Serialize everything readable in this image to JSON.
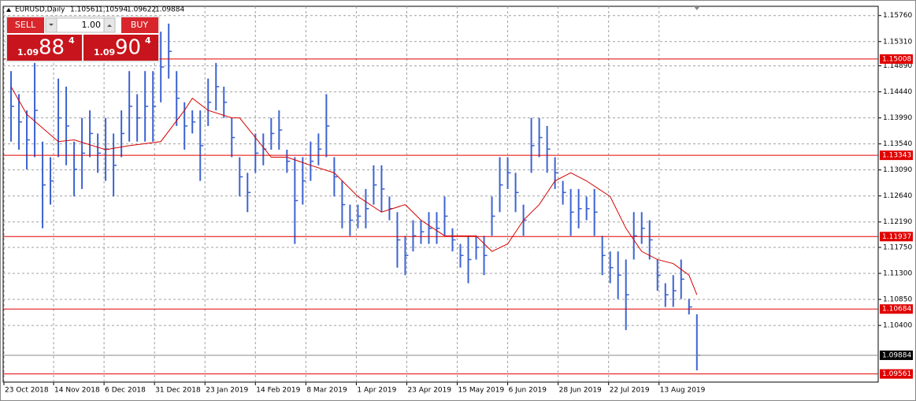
{
  "chart_data": {
    "type": "ohlc",
    "title": "EURUSD,Daily",
    "last_open": 1.10561,
    "color": "#3d63d1",
    "high": [
      1.148,
      1.144,
      1.1412,
      1.1494,
      1.1358,
      1.1331,
      1.1467,
      1.1453,
      1.1358,
      1.1399,
      1.1412,
      1.1372,
      1.1399,
      1.1372,
      1.1412,
      1.148,
      1.144,
      1.148,
      1.148,
      1.1548,
      1.1562,
      1.148,
      1.1426,
      1.1412,
      1.1412,
      1.1467,
      1.1494,
      1.1453,
      1.1399,
      1.1331,
      1.1304,
      1.1372,
      1.1372,
      1.1399,
      1.1412,
      1.1344,
      1.1331,
      1.1331,
      1.1358,
      1.1372,
      1.144,
      1.1331,
      1.129,
      1.1249,
      1.1249,
      1.1276,
      1.1317,
      1.1317,
      1.1263,
      1.1236,
      1.1195,
      1.1222,
      1.1222,
      1.1236,
      1.1236,
      1.1263,
      1.1208,
      1.1181,
      1.1195,
      1.1195,
      1.1195,
      1.1263,
      1.1331,
      1.1331,
      1.1304,
      1.1249,
      1.1399,
      1.1399,
      1.1385,
      1.1331,
      1.129,
      1.1276,
      1.1276,
      1.1263,
      1.1276,
      1.1195,
      1.1168,
      1.1168,
      1.1154,
      1.1236,
      1.1236,
      1.1222,
      1.1154,
      1.1113,
      1.1127,
      1.1154,
      1.1086,
      1.10594
    ],
    "low": [
      1.1358,
      1.1344,
      1.131,
      1.1331,
      1.1208,
      1.1249,
      1.1331,
      1.1317,
      1.1263,
      1.1276,
      1.1331,
      1.1304,
      1.129,
      1.1263,
      1.1331,
      1.1358,
      1.1358,
      1.1358,
      1.1358,
      1.1426,
      1.1467,
      1.1385,
      1.1344,
      1.1372,
      1.129,
      1.1385,
      1.1412,
      1.1399,
      1.1331,
      1.1263,
      1.1236,
      1.1304,
      1.1317,
      1.1344,
      1.1344,
      1.1304,
      1.1181,
      1.1249,
      1.129,
      1.1317,
      1.1331,
      1.1263,
      1.1208,
      1.1195,
      1.1208,
      1.1208,
      1.1249,
      1.1236,
      1.1222,
      1.114,
      1.1127,
      1.1168,
      1.1181,
      1.1181,
      1.1181,
      1.1195,
      1.1168,
      1.114,
      1.1113,
      1.1154,
      1.1127,
      1.1195,
      1.1236,
      1.1276,
      1.1236,
      1.1195,
      1.1304,
      1.1331,
      1.1304,
      1.1276,
      1.1249,
      1.1195,
      1.1208,
      1.1222,
      1.1195,
      1.1127,
      1.1113,
      1.1086,
      1.1032,
      1.1154,
      1.1181,
      1.1154,
      1.11,
      1.1072,
      1.1072,
      1.1086,
      1.1059,
      1.09622
    ],
    "close": [
      1.1419,
      1.1392,
      1.1361,
      1.1412,
      1.1283,
      1.129,
      1.1399,
      1.1385,
      1.131,
      1.1338,
      1.1372,
      1.1338,
      1.1345,
      1.1317,
      1.1372,
      1.1419,
      1.1399,
      1.1419,
      1.1419,
      1.1487,
      1.1514,
      1.1433,
      1.1385,
      1.1392,
      1.1351,
      1.1426,
      1.1453,
      1.1426,
      1.1365,
      1.1297,
      1.127,
      1.1338,
      1.1345,
      1.1372,
      1.1378,
      1.1324,
      1.1256,
      1.129,
      1.1324,
      1.1345,
      1.1385,
      1.1297,
      1.1249,
      1.1222,
      1.1229,
      1.1242,
      1.1283,
      1.1276,
      1.1242,
      1.1188,
      1.1161,
      1.1195,
      1.1202,
      1.1208,
      1.1208,
      1.1229,
      1.1188,
      1.1161,
      1.1154,
      1.1175,
      1.1161,
      1.1229,
      1.1283,
      1.1304,
      1.127,
      1.1222,
      1.1351,
      1.1365,
      1.1345,
      1.1304,
      1.127,
      1.1236,
      1.1242,
      1.1242,
      1.1236,
      1.1161,
      1.114,
      1.1127,
      1.1093,
      1.1195,
      1.1208,
      1.1188,
      1.1127,
      1.1093,
      1.11,
      1.112,
      1.1072,
      1.09884
    ],
    "ma": {
      "color": "#d40000",
      "x": [
        0,
        2,
        6,
        8,
        12,
        15,
        19,
        22,
        23,
        25,
        28,
        29,
        33,
        35,
        38,
        41,
        44,
        47,
        50,
        52,
        55,
        59,
        61,
        63,
        65,
        67,
        69,
        71,
        73,
        76,
        78,
        80,
        82,
        84,
        86,
        87
      ],
      "values": [
        1.1453,
        1.1405,
        1.1358,
        1.1361,
        1.1344,
        1.1351,
        1.1358,
        1.1412,
        1.1433,
        1.1412,
        1.1399,
        1.1399,
        1.1331,
        1.1331,
        1.1317,
        1.1304,
        1.1263,
        1.1236,
        1.1249,
        1.1222,
        1.1195,
        1.1195,
        1.1168,
        1.1181,
        1.1222,
        1.1249,
        1.129,
        1.1304,
        1.129,
        1.1263,
        1.1208,
        1.1168,
        1.1154,
        1.1147,
        1.1127,
        1.1093
      ]
    },
    "levels": {
      "color": "#e00000",
      "values": [
        1.15008,
        1.13343,
        1.11937,
        1.10684,
        1.09561
      ]
    },
    "current_price": 1.09884,
    "xlim": [
      -1,
      110
    ],
    "ylim": [
      1.0942,
      1.1592
    ],
    "xticks": [
      {
        "value": -0.9,
        "label": "23 Oct 2018"
      },
      {
        "value": 5.4,
        "label": "14 Nov 2018"
      },
      {
        "value": 11.8,
        "label": "6 Dec 2018"
      },
      {
        "value": 18.2,
        "label": "31 Dec 2018"
      },
      {
        "value": 24.6,
        "label": "23 Jan 2019"
      },
      {
        "value": 31,
        "label": "14 Feb 2019"
      },
      {
        "value": 37.4,
        "label": "8 Mar 2019"
      },
      {
        "value": 43.8,
        "label": "1 Apr 2019"
      },
      {
        "value": 50.2,
        "label": "23 Apr 2019"
      },
      {
        "value": 56.6,
        "label": "15 May 2019"
      },
      {
        "value": 63,
        "label": "6 Jun 2019"
      },
      {
        "value": 69.4,
        "label": "28 Jun 2019"
      },
      {
        "value": 75.8,
        "label": "22 Jul 2019"
      },
      {
        "value": 82.2,
        "label": "13 Aug 2019"
      }
    ],
    "yticks": [
      {
        "value": 1.1576,
        "label": "1.15760"
      },
      {
        "value": 1.1531,
        "label": "1.15310"
      },
      {
        "value": 1.1489,
        "label": "1.14890"
      },
      {
        "value": 1.1444,
        "label": "1.14440"
      },
      {
        "value": 1.1399,
        "label": "1.13990"
      },
      {
        "value": 1.1354,
        "label": "1.13540"
      },
      {
        "value": 1.1309,
        "label": "1.13090"
      },
      {
        "value": 1.1264,
        "label": "1.12640"
      },
      {
        "value": 1.1219,
        "label": "1.12190"
      },
      {
        "value": 1.1175,
        "label": "1.11750"
      },
      {
        "value": 1.113,
        "label": "1.11300"
      },
      {
        "value": 1.1085,
        "label": "1.10850"
      },
      {
        "value": 1.104,
        "label": "1.10400"
      }
    ],
    "grid": true,
    "trade_panel": {
      "sell": "SELL",
      "buy": "BUY",
      "volume": "1.00",
      "bid": {
        "big": "1.09",
        "pips": "88",
        "frac": "4"
      },
      "ask": {
        "big": "1.09",
        "pips": "90",
        "frac": "4"
      }
    }
  }
}
